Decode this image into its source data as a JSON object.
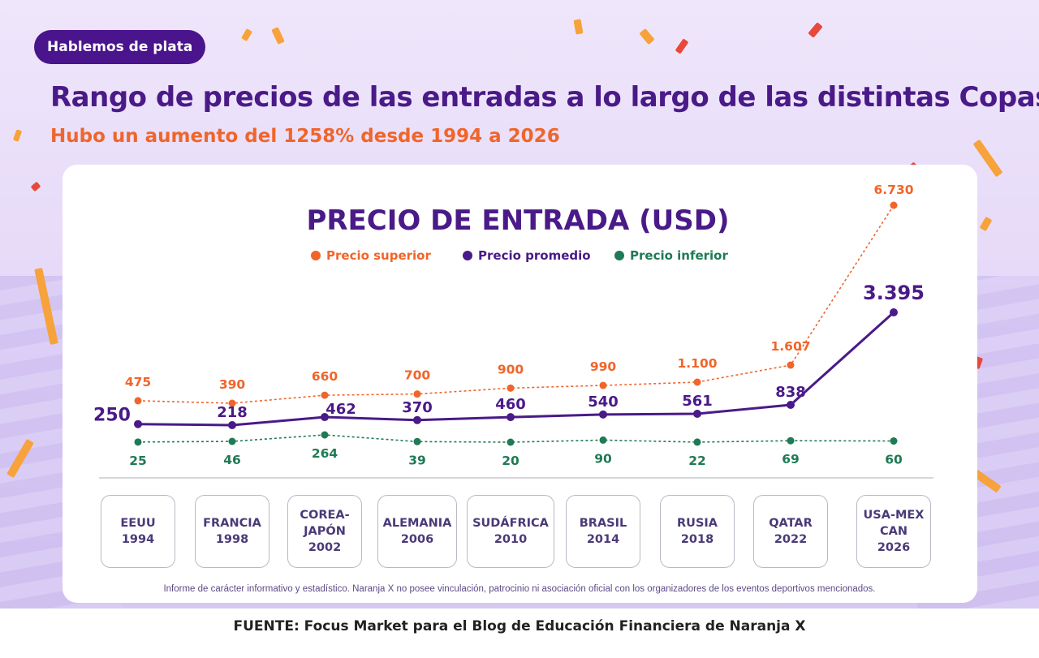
{
  "header": {
    "tag": "Hablemos de plata",
    "title": "Rango de precios de las entradas a lo largo de las distintas Copas",
    "subtitle": "Hubo un aumento del 1258% desde 1994 a 2026"
  },
  "colors": {
    "purple": "#4a1a88",
    "orange": "#f0652a",
    "green": "#1f7a55"
  },
  "chart_data": {
    "type": "line",
    "title": "PRECIO DE ENTRADA (USD)",
    "categories": [
      "EEUU\n1994",
      "FRANCIA\n1998",
      "COREA-\nJAPÓN\n2002",
      "ALEMANIA\n2006",
      "SUDÁFRICA\n2010",
      "BRASIL\n2014",
      "RUSIA\n2018",
      "QATAR\n2022",
      "USA-MEX\nCAN\n2026"
    ],
    "series": [
      {
        "name": "Precio superior",
        "color": "#f0652a",
        "values": [
          475,
          390,
          660,
          700,
          900,
          990,
          1100,
          1607,
          6730
        ],
        "labels": [
          "475",
          "390",
          "660",
          "700",
          "900",
          "990",
          "1.100",
          "1.607",
          "6.730"
        ]
      },
      {
        "name": "Precio promedio",
        "color": "#4a1a88",
        "values": [
          250,
          218,
          462,
          370,
          460,
          540,
          561,
          838,
          3395
        ],
        "labels": [
          "250",
          "218",
          "462",
          "370",
          "460",
          "540",
          "561",
          "838",
          "3.395"
        ]
      },
      {
        "name": "Precio inferior",
        "color": "#1f7a55",
        "values": [
          25,
          46,
          264,
          39,
          20,
          90,
          22,
          69,
          60
        ],
        "labels": [
          "25",
          "46",
          "264",
          "39",
          "20",
          "90",
          "22",
          "69",
          "60"
        ]
      }
    ],
    "legend_position": "top-center",
    "grid": false
  },
  "footer": {
    "disclaimer": "Informe de carácter informativo y estadístico. Naranja X no posee vinculación, patrocinio ni asociación oficial con los organizadores de los eventos deportivos mencionados.",
    "source": "FUENTE: Focus Market para el Blog de Educación Financiera de Naranja X"
  }
}
